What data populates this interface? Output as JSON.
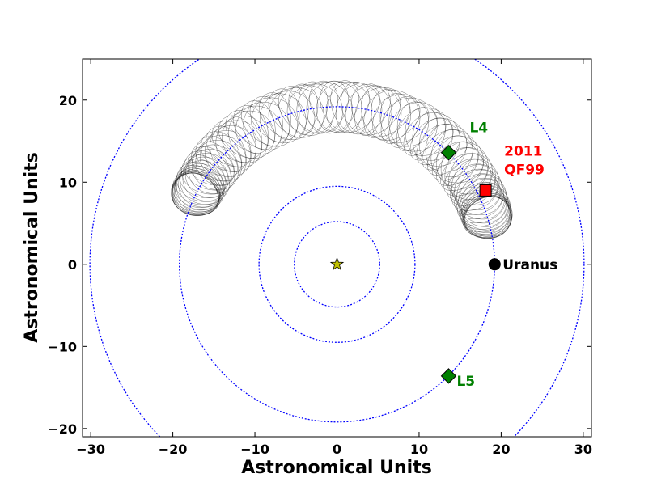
{
  "chart_data": {
    "type": "scatter",
    "xlabel": "Astronomical Units",
    "ylabel": "Astronomical Units",
    "xlim": [
      -31,
      31
    ],
    "ylim": [
      -21,
      25
    ],
    "x_ticks": [
      -30,
      -20,
      -10,
      0,
      10,
      20,
      30
    ],
    "y_ticks": [
      -20,
      -10,
      0,
      10,
      20
    ],
    "x_tick_labels": [
      "−30",
      "−20",
      "−10",
      "0",
      "10",
      "20",
      "30"
    ],
    "y_tick_labels": [
      "−20",
      "−10",
      "0",
      "10",
      "20"
    ],
    "grid": false,
    "aspect": "equal",
    "orbits_au": [
      5.2,
      9.5,
      19.2,
      30.1
    ],
    "orbit_color": "#0000ff",
    "track_color": "#000000",
    "objects": [
      {
        "name": "Sun",
        "label": "",
        "x": 0,
        "y": 0,
        "marker": "star",
        "color": "#bfbf00"
      },
      {
        "name": "Uranus",
        "label": "Uranus",
        "x": 19.2,
        "y": 0,
        "marker": "circle",
        "color": "#000000"
      },
      {
        "name": "L4",
        "label": "L4",
        "x": 13.6,
        "y": 13.6,
        "marker": "diamond",
        "color": "#008000"
      },
      {
        "name": "L5",
        "label": "L5",
        "x": 13.6,
        "y": -13.6,
        "marker": "diamond",
        "color": "#008000"
      },
      {
        "name": "2011 QF99",
        "label_lines": [
          "2011",
          "QF99"
        ],
        "x": 18.1,
        "y": 9.0,
        "marker": "square",
        "color": "#ff0000"
      }
    ],
    "trajectory": {
      "guiding_center_radius_au": 19.2,
      "angle_range_deg": [
        17,
        154
      ],
      "radial_epicycle_au": 3.3
    }
  }
}
